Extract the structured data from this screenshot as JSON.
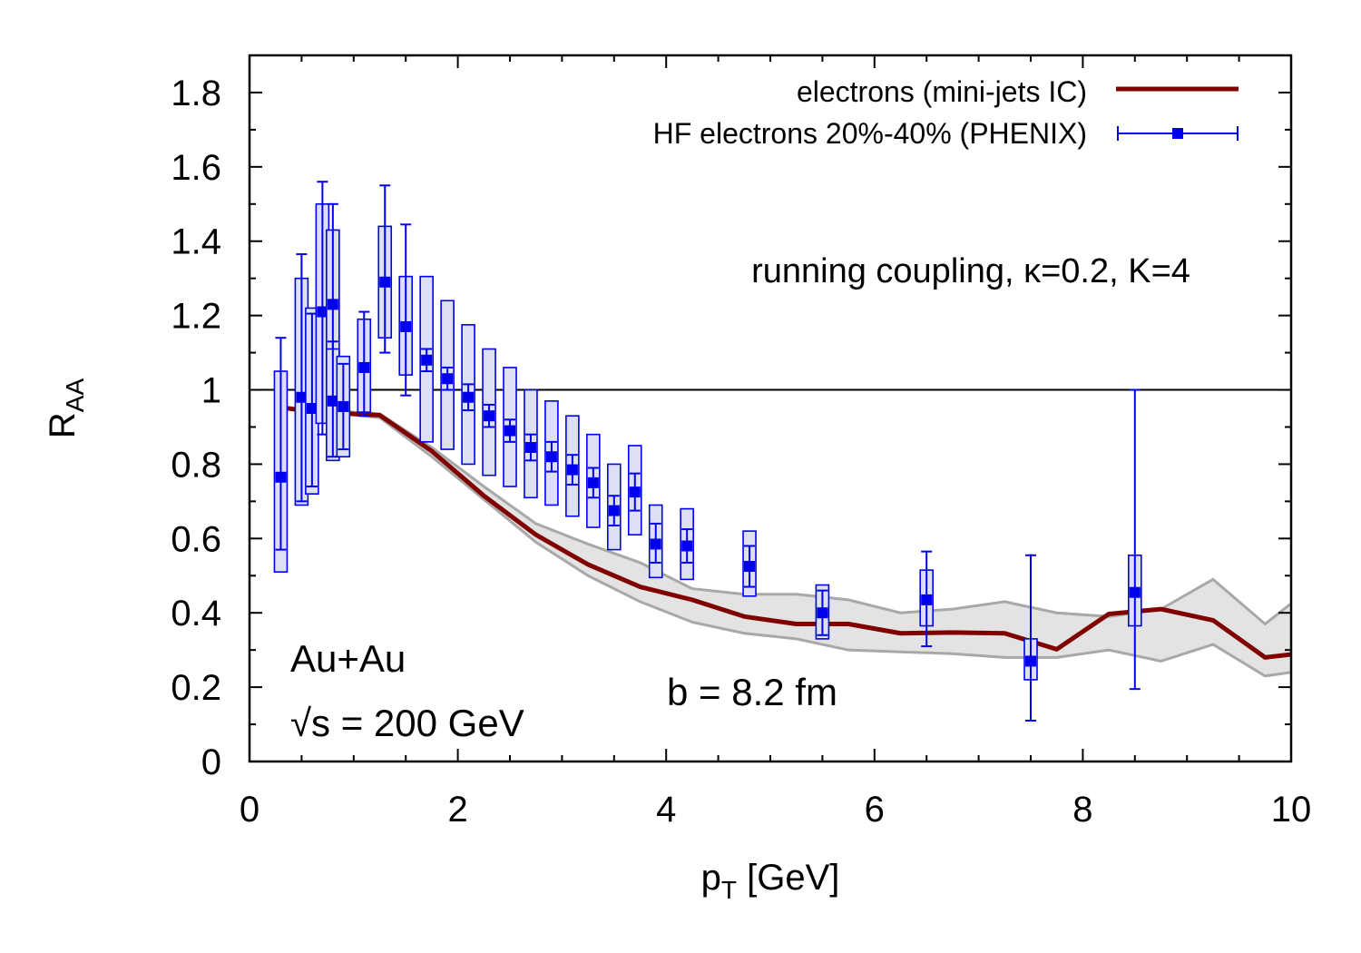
{
  "chart_data": {
    "type": "line",
    "xlim": [
      0,
      10
    ],
    "ylim": [
      0,
      1.9
    ],
    "x_ticks": [
      "0",
      "2",
      "4",
      "6",
      "8",
      "10"
    ],
    "y_ticks": [
      "0",
      "0.2",
      "0.4",
      "0.6",
      "0.8",
      "1",
      "1.2",
      "1.4",
      "1.6",
      "1.8"
    ],
    "xlabel_main": "p",
    "xlabel_sub": "T",
    "xlabel_rest": " [GeV]",
    "ylabel_main": "R",
    "ylabel_sub": "AA",
    "reference_line": 1,
    "legend_position": "top-right",
    "legend": [
      "electrons (mini-jets IC)",
      "HF electrons 20%-40% (PHENIX)"
    ],
    "annotations": {
      "coupling": "running coupling, κ=0.2, K=4",
      "system": "Au+Au",
      "energy": "√s = 200 GeV",
      "impact": "b = 8.2 fm"
    },
    "colors": {
      "model_line": "#800000",
      "data": "#0000ee",
      "band_fill": "#e3e3e3",
      "band_edge": "#a8a8a8",
      "box_fill": "#dde0f5"
    },
    "series": [
      {
        "name": "electrons (mini-jets IC)",
        "x": [
          0.25,
          0.5,
          0.75,
          1.0,
          1.25,
          1.75,
          2.25,
          2.75,
          3.25,
          3.75,
          4.25,
          4.75,
          5.25,
          5.75,
          6.25,
          6.75,
          7.25,
          7.75,
          8.25,
          8.75,
          9.25,
          9.75,
          10.0
        ],
        "y": [
          0.955,
          0.945,
          0.94,
          0.935,
          0.932,
          0.835,
          0.715,
          0.61,
          0.53,
          0.47,
          0.435,
          0.39,
          0.37,
          0.37,
          0.345,
          0.347,
          0.345,
          0.302,
          0.397,
          0.41,
          0.38,
          0.28,
          0.288
        ]
      },
      {
        "name": "model uncertainty band",
        "x": [
          0.25,
          1.25,
          1.75,
          2.25,
          2.75,
          3.25,
          3.75,
          4.25,
          4.75,
          5.25,
          5.75,
          6.25,
          6.75,
          7.25,
          7.75,
          8.25,
          8.75,
          9.25,
          9.75,
          10.0
        ],
        "upper": [
          0.955,
          0.935,
          0.845,
          0.74,
          0.64,
          0.585,
          0.535,
          0.465,
          0.45,
          0.45,
          0.435,
          0.4,
          0.41,
          0.43,
          0.4,
          0.39,
          0.41,
          0.49,
          0.37,
          0.425
        ],
        "lower": [
          0.955,
          0.925,
          0.82,
          0.705,
          0.59,
          0.5,
          0.43,
          0.375,
          0.345,
          0.33,
          0.3,
          0.295,
          0.29,
          0.28,
          0.28,
          0.3,
          0.27,
          0.315,
          0.23,
          0.24
        ]
      },
      {
        "name": "HF electrons 20%-40% (PHENIX)",
        "points": [
          {
            "x": 0.3,
            "y": 0.765,
            "err_lo": 0.57,
            "err_hi": 1.14,
            "sys_lo": 0.51,
            "sys_hi": 1.05
          },
          {
            "x": 0.5,
            "y": 0.98,
            "err_lo": 0.7,
            "err_hi": 1.365,
            "sys_lo": 0.69,
            "sys_hi": 1.3
          },
          {
            "x": 0.6,
            "y": 0.95,
            "err_lo": 0.74,
            "err_hi": 1.205,
            "sys_lo": 0.72,
            "sys_hi": 1.22
          },
          {
            "x": 0.7,
            "y": 1.21,
            "err_lo": 0.88,
            "err_hi": 1.56,
            "sys_lo": 0.91,
            "sys_hi": 1.5
          },
          {
            "x": 0.8,
            "y": 1.23,
            "err_lo": 1.04,
            "err_hi": 1.5,
            "sys_lo": 1.03,
            "sys_hi": 1.43
          },
          {
            "x": 0.8,
            "y": 0.97,
            "err_lo": 0.82,
            "err_hi": 1.13,
            "sys_lo": 0.81,
            "sys_hi": 1.11
          },
          {
            "x": 0.9,
            "y": 0.955,
            "err_lo": 0.84,
            "err_hi": 1.07,
            "sys_lo": 0.82,
            "sys_hi": 1.09
          },
          {
            "x": 1.1,
            "y": 1.06,
            "err_lo": 0.93,
            "err_hi": 1.21,
            "sys_lo": 0.94,
            "sys_hi": 1.19
          },
          {
            "x": 1.3,
            "y": 1.29,
            "err_lo": 1.1,
            "err_hi": 1.55,
            "sys_lo": 1.14,
            "sys_hi": 1.44
          },
          {
            "x": 1.5,
            "y": 1.17,
            "err_lo": 0.985,
            "err_hi": 1.445,
            "sys_lo": 1.04,
            "sys_hi": 1.305
          },
          {
            "x": 1.7,
            "y": 1.08,
            "err_lo": 1.05,
            "err_hi": 1.11,
            "sys_lo": 0.86,
            "sys_hi": 1.305
          },
          {
            "x": 1.9,
            "y": 1.03,
            "err_lo": 1.0,
            "err_hi": 1.06,
            "sys_lo": 0.84,
            "sys_hi": 1.24
          },
          {
            "x": 2.1,
            "y": 0.98,
            "err_lo": 0.945,
            "err_hi": 1.015,
            "sys_lo": 0.8,
            "sys_hi": 1.175
          },
          {
            "x": 2.3,
            "y": 0.93,
            "err_lo": 0.9,
            "err_hi": 0.96,
            "sys_lo": 0.77,
            "sys_hi": 1.11
          },
          {
            "x": 2.5,
            "y": 0.89,
            "err_lo": 0.86,
            "err_hi": 0.92,
            "sys_lo": 0.74,
            "sys_hi": 1.06
          },
          {
            "x": 2.7,
            "y": 0.845,
            "err_lo": 0.81,
            "err_hi": 0.88,
            "sys_lo": 0.71,
            "sys_hi": 1.0
          },
          {
            "x": 2.9,
            "y": 0.82,
            "err_lo": 0.78,
            "err_hi": 0.86,
            "sys_lo": 0.69,
            "sys_hi": 0.97
          },
          {
            "x": 3.1,
            "y": 0.785,
            "err_lo": 0.745,
            "err_hi": 0.825,
            "sys_lo": 0.66,
            "sys_hi": 0.93
          },
          {
            "x": 3.3,
            "y": 0.75,
            "err_lo": 0.71,
            "err_hi": 0.79,
            "sys_lo": 0.63,
            "sys_hi": 0.88
          },
          {
            "x": 3.5,
            "y": 0.675,
            "err_lo": 0.635,
            "err_hi": 0.715,
            "sys_lo": 0.57,
            "sys_hi": 0.8
          },
          {
            "x": 3.7,
            "y": 0.725,
            "err_lo": 0.675,
            "err_hi": 0.775,
            "sys_lo": 0.61,
            "sys_hi": 0.85
          },
          {
            "x": 3.9,
            "y": 0.585,
            "err_lo": 0.535,
            "err_hi": 0.64,
            "sys_lo": 0.495,
            "sys_hi": 0.69
          },
          {
            "x": 4.2,
            "y": 0.58,
            "err_lo": 0.535,
            "err_hi": 0.625,
            "sys_lo": 0.49,
            "sys_hi": 0.68
          },
          {
            "x": 4.8,
            "y": 0.525,
            "err_lo": 0.47,
            "err_hi": 0.58,
            "sys_lo": 0.445,
            "sys_hi": 0.62
          },
          {
            "x": 5.5,
            "y": 0.4,
            "err_lo": 0.34,
            "err_hi": 0.46,
            "sys_lo": 0.33,
            "sys_hi": 0.475
          },
          {
            "x": 6.5,
            "y": 0.435,
            "err_lo": 0.31,
            "err_hi": 0.565,
            "sys_lo": 0.365,
            "sys_hi": 0.515
          },
          {
            "x": 7.5,
            "y": 0.27,
            "err_lo": 0.11,
            "err_hi": 0.555,
            "sys_lo": 0.22,
            "sys_hi": 0.33
          },
          {
            "x": 8.5,
            "y": 0.455,
            "err_lo": 0.195,
            "err_hi": 1.0,
            "sys_lo": 0.365,
            "sys_hi": 0.555
          }
        ]
      }
    ]
  }
}
